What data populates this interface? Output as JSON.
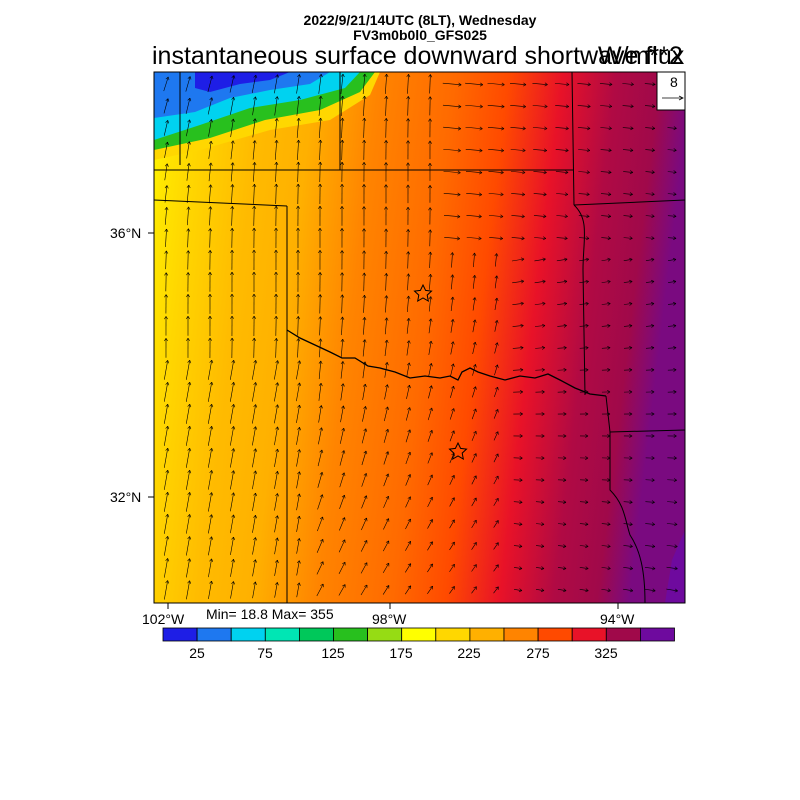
{
  "header": {
    "line1": "2022/9/21/14UTC (8LT), Wednesday",
    "line2": "FV3m0b0l0_GFS025",
    "title": "instantaneous surface downward shortwave flux",
    "units": "W/m**2"
  },
  "reference_vector": {
    "label": "8"
  },
  "axes": {
    "lon_ticks": [
      "102°W",
      "98°W",
      "94°W"
    ],
    "lat_ticks": [
      "36°N",
      "32°N"
    ]
  },
  "stats": {
    "text": "Min= 18.8 Max= 355"
  },
  "colorbar": {
    "colors": [
      "#1e1ee6",
      "#1e78f0",
      "#00d2f0",
      "#00e6b4",
      "#00c85a",
      "#28c01e",
      "#96dc14",
      "#ffff00",
      "#ffd700",
      "#ffb000",
      "#ff8400",
      "#ff4a00",
      "#e81228",
      "#a0094a",
      "#6e0a9e"
    ],
    "labels": [
      "25",
      "75",
      "125",
      "175",
      "225",
      "275",
      "325"
    ]
  },
  "markers": [
    {
      "name": "star-marker-north"
    },
    {
      "name": "star-marker-south"
    }
  ]
}
